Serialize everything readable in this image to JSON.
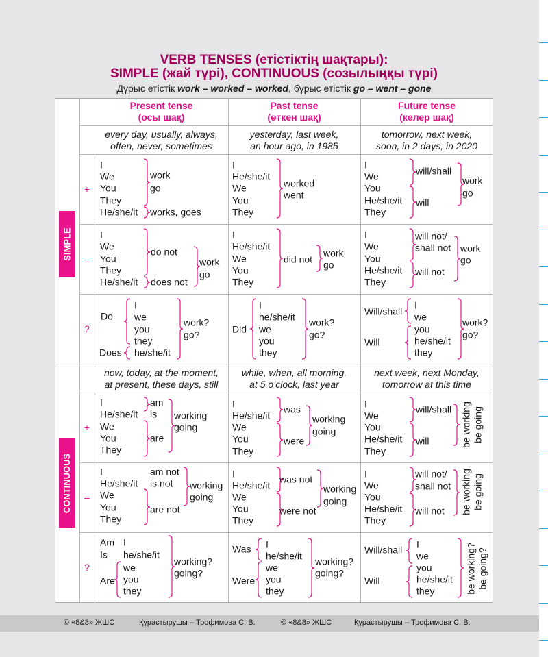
{
  "title_line1": "VERB TENSES (етістіктің шақтары):",
  "title_line2": "SIMPLE (жай түрі), CONTINUOUS (созылыңқы түрі)",
  "subtitle": {
    "a": "Дұрыс етістік ",
    "b": "work – worked – worked",
    ", c": "",
    "c": ", бұрыс етістік ",
    "d": "go – went – gone"
  },
  "headers": {
    "present": [
      "Present tense",
      "(осы шақ)"
    ],
    "past": [
      "Past tense",
      "(өткен шақ)"
    ],
    "future": [
      "Future tense",
      "(келер шақ)"
    ]
  },
  "sections": {
    "simple": "SIMPLE",
    "continuous": "CONTINUOUS"
  },
  "signs": {
    "pos": "+",
    "neg": "–",
    "q": "?"
  },
  "accent_color": "#e0148a",
  "simple": {
    "time": {
      "present": [
        "every day, usually, always,",
        "often, never, sometimes"
      ],
      "past": [
        "yesterday, last week,",
        "an hour ago, in 1985"
      ],
      "future": [
        "tomorrow, next week,",
        "soon, in 2 days, in 2020"
      ]
    },
    "pos": {
      "present": [
        "I",
        "We",
        "You",
        "They",
        "He/she/it",
        "work",
        "go",
        "works, goes"
      ],
      "past": [
        "I",
        "He/she/it",
        "We",
        "You",
        "They",
        "worked",
        "went"
      ],
      "future": [
        "I",
        "We",
        "You",
        "He/she/it",
        "They",
        "will/shall",
        "will",
        "work",
        "go"
      ]
    },
    "neg": {
      "present": [
        "I",
        "We",
        "You",
        "They",
        "He/she/it",
        "do not",
        "does not",
        "work",
        "go"
      ],
      "past": [
        "I",
        "He/she/it",
        "We",
        "You",
        "They",
        "did not",
        "work",
        "go"
      ],
      "future": [
        "I",
        "We",
        "You",
        "He/she/it",
        "They",
        "will not/",
        "shall not",
        "will not",
        "work",
        "go"
      ]
    },
    "q": {
      "present": [
        "Do",
        "Does",
        "I",
        "we",
        "you",
        "they",
        "he/she/it",
        "work?",
        "go?"
      ],
      "past": [
        "Did",
        "I",
        "he/she/it",
        "we",
        "you",
        "they",
        "work?",
        "go?"
      ],
      "future": [
        "Will/shall",
        "Will",
        "I",
        "we",
        "you",
        "he/she/it",
        "they",
        "work?",
        "go?"
      ]
    }
  },
  "continuous": {
    "time": {
      "present": [
        "now, today, at the moment,",
        "at present, these days, still"
      ],
      "past": [
        "while, when, all morning,",
        "at 5 o’clock, last year"
      ],
      "future": [
        "next week, next Monday,",
        "tomorrow at this time"
      ]
    },
    "pos": {
      "present": [
        "I",
        "He/she/it",
        "We",
        "You",
        "They",
        "am",
        "is",
        "are",
        "working",
        "going"
      ],
      "past": [
        "I",
        "He/she/it",
        "We",
        "You",
        "They",
        "was",
        "were",
        "working",
        "going"
      ],
      "future": [
        "I",
        "We",
        "You",
        "He/she/it",
        "They",
        "will/shall",
        "will",
        "be working",
        "be going"
      ]
    },
    "neg": {
      "present": [
        "I",
        "He/she/it",
        "We",
        "You",
        "They",
        "am not",
        "is not",
        "are not",
        "working",
        "going"
      ],
      "past": [
        "I",
        "He/she/it",
        "We",
        "You",
        "They",
        "was not",
        "were not",
        "working",
        "going"
      ],
      "future": [
        "I",
        "We",
        "You",
        "He/she/it",
        "They",
        "will not/",
        "shall not",
        "will not",
        "be working",
        "be going"
      ]
    },
    "q": {
      "present": [
        "Am",
        "Is",
        "Are",
        "I",
        "he/she/it",
        "we",
        "you",
        "they",
        "working?",
        "going?"
      ],
      "past": [
        "Was",
        "Were",
        "I",
        "he/she/it",
        "we",
        "you",
        "they",
        "working?",
        "going?"
      ],
      "future": [
        "Will/shall",
        "Will",
        "I",
        "we",
        "you",
        "he/she/it",
        "they",
        "be working?",
        "be going?"
      ]
    }
  },
  "footer": [
    "© «8&8» ЖШС",
    "Құрастырушы  – Трофимова С. В.",
    "© «8&8» ЖШС",
    "Құрастырушы  – Трофимова С. В."
  ]
}
